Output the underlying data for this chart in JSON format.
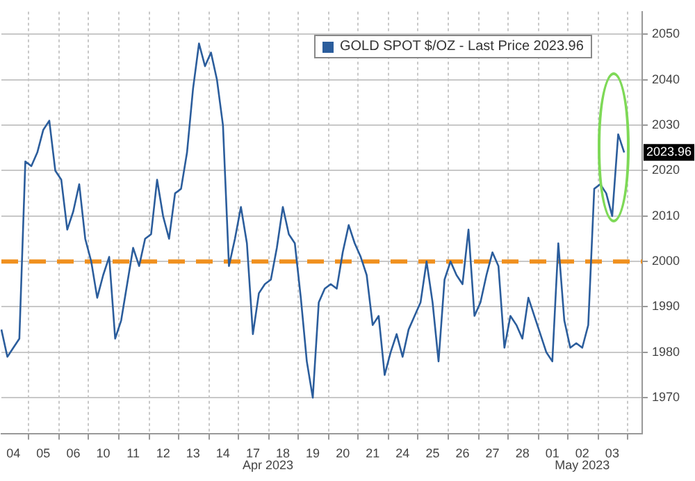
{
  "chart_data": {
    "type": "line",
    "categories": [
      null,
      null,
      "04",
      null,
      null,
      null,
      null,
      "05",
      null,
      null,
      null,
      null,
      "06",
      null,
      null,
      null,
      null,
      "10",
      null,
      null,
      null,
      null,
      "11",
      null,
      null,
      null,
      null,
      "12",
      null,
      null,
      null,
      null,
      "13",
      null,
      null,
      null,
      null,
      "14",
      null,
      null,
      null,
      null,
      "17",
      null,
      null,
      null,
      null,
      "18",
      null,
      null,
      null,
      null,
      "19",
      null,
      null,
      null,
      null,
      "20",
      null,
      null,
      null,
      null,
      "21",
      null,
      null,
      null,
      null,
      "24",
      null,
      null,
      null,
      null,
      "25",
      null,
      null,
      null,
      null,
      "26",
      null,
      null,
      null,
      null,
      "27",
      null,
      null,
      null,
      null,
      "28",
      null,
      null,
      null,
      null,
      "01",
      null,
      null,
      null,
      null,
      "02",
      null,
      null,
      null,
      null,
      "03",
      null,
      null,
      null,
      null,
      null
    ],
    "series": [
      {
        "name": "GOLD SPOT $/OZ - Last Price 2023.96",
        "color": "#2b5d9c",
        "values": [
          1985,
          1979,
          1981,
          1983,
          2022,
          2021,
          2024,
          2029,
          2031,
          2020,
          2018,
          2007,
          2011,
          2017,
          2005,
          2000,
          1992,
          1997,
          2001,
          1983,
          1987,
          1995,
          2003,
          1999,
          2005,
          2006,
          2018,
          2010,
          2005,
          2015,
          2016,
          2024,
          2038,
          2048,
          2043,
          2046,
          2040,
          2030,
          1999,
          2005,
          2012,
          2004,
          1984,
          1993,
          1995,
          1996,
          2003,
          2012,
          2006,
          2004,
          1992,
          1978,
          1970,
          1991,
          1994,
          1995,
          1994,
          2002,
          2008,
          2004,
          2001,
          1997,
          1986,
          1988,
          1975,
          1980,
          1984,
          1979,
          1985,
          1988,
          1991,
          2000,
          1991,
          1978,
          1996,
          2000,
          1997,
          1995,
          2007,
          1988,
          1991,
          1997,
          2002,
          1999,
          1981,
          1988,
          1986,
          1983,
          1992,
          1988,
          1984,
          1980,
          1978,
          2004,
          1987,
          1981,
          1982,
          1981,
          1986,
          2016,
          2017,
          2015,
          2010,
          2028,
          2024,
          null,
          null,
          null
        ]
      }
    ],
    "ylim": [
      1962,
      2055
    ],
    "yticks": [
      1970,
      1980,
      1990,
      2000,
      2010,
      2020,
      2030,
      2040,
      2050
    ],
    "ref_lines": [
      {
        "axis": "y",
        "value": 2000,
        "color": "#f0901e",
        "line_style": "dashed"
      }
    ],
    "annotations": [
      "Apr 2023",
      "May 2023",
      "2023.96"
    ],
    "grid": true,
    "legend": "top",
    "marker": "none",
    "line_style": "solid"
  }
}
